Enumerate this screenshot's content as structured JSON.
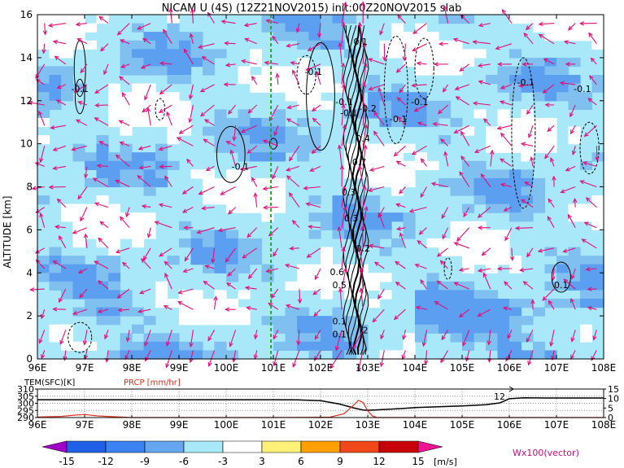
{
  "title": "NICAM U (4S) (12Z21NOV2015) init:00Z20NOV2015 slab",
  "colors": {
    "arrow": "#e0107a",
    "green_line": "#22aa22",
    "shade_light": "#a8e8f8",
    "shade_mid": "#80c0f0",
    "shade_dark": "#5c9ef0",
    "prcp": "#e03020"
  },
  "chart_data": [
    {
      "type": "heatmap",
      "name": "zonal wind cross-section",
      "xlabel": "",
      "ylabel": "ALTITUDE [km]",
      "xlim": [
        96,
        108
      ],
      "ylim": [
        0,
        16
      ],
      "x_ticks": [
        "96E",
        "97E",
        "98E",
        "99E",
        "100E",
        "101E",
        "102E",
        "103E",
        "104E",
        "105E",
        "106E",
        "107E",
        "108E"
      ],
      "y_ticks": [
        "0",
        "2",
        "4",
        "6",
        "8",
        "10",
        "12",
        "14",
        "16"
      ],
      "marker_line_lon": 100.95,
      "contour_labels": [
        {
          "text": "-0.1",
          "x": 96.9,
          "y": 12.4
        },
        {
          "text": "-0.1",
          "x": 100.3,
          "y": 8.8
        },
        {
          "text": "-0.1",
          "x": 101.85,
          "y": 13.2
        },
        {
          "text": "-0.1",
          "x": 102.5,
          "y": 11.8
        },
        {
          "text": "-0.1",
          "x": 102.6,
          "y": 11.3
        },
        {
          "text": "-0.2",
          "x": 103.0,
          "y": 11.5
        },
        {
          "text": "-0.1",
          "x": 103.65,
          "y": 11.0
        },
        {
          "text": "-0.1",
          "x": 104.1,
          "y": 11.8
        },
        {
          "text": "-0.1",
          "x": 106.35,
          "y": 12.7
        },
        {
          "text": "-0.1",
          "x": 107.55,
          "y": 12.4
        },
        {
          "text": "0.1",
          "x": 102.85,
          "y": 14.6
        },
        {
          "text": "0.4",
          "x": 102.9,
          "y": 10.1
        },
        {
          "text": "0.7",
          "x": 102.82,
          "y": 9.0
        },
        {
          "text": "0.3",
          "x": 102.6,
          "y": 7.6
        },
        {
          "text": "0.3",
          "x": 102.65,
          "y": 6.4
        },
        {
          "text": "0.2",
          "x": 102.9,
          "y": 5.0
        },
        {
          "text": "0.6",
          "x": 102.35,
          "y": 3.9
        },
        {
          "text": "0.5",
          "x": 102.4,
          "y": 3.3
        },
        {
          "text": "0.1",
          "x": 102.4,
          "y": 1.6
        },
        {
          "text": "0.1",
          "x": 102.4,
          "y": 1.0
        },
        {
          "text": "2",
          "x": 102.95,
          "y": 1.2
        },
        {
          "text": "0.1",
          "x": 107.1,
          "y": 3.3
        }
      ]
    },
    {
      "type": "line",
      "name": "surface panel",
      "left_axis_label": "TEM(SFC)[K]",
      "right_series_label": "PRCP [mm/hr]",
      "left_ticks": [
        "310",
        "305",
        "300",
        "295",
        "290"
      ],
      "right_ticks": [
        "15",
        "10",
        "5",
        "0"
      ],
      "x_ticks": [
        "96E",
        "97E",
        "98E",
        "99E",
        "100E",
        "101E",
        "102E",
        "103E",
        "104E",
        "105E",
        "106E",
        "107E",
        "108E"
      ],
      "xlim": [
        96,
        108
      ],
      "ylim_left": [
        290,
        310
      ],
      "ylim_right": [
        0,
        15
      ],
      "series": [
        {
          "name": "TEM(SFC)[K]",
          "x": [
            96,
            97,
            98,
            99,
            100,
            101,
            101.5,
            102.0,
            102.4,
            102.7,
            102.9,
            103.0,
            103.3,
            103.7,
            104.0,
            104.5,
            105.0,
            105.5,
            105.8,
            106.0,
            106.3,
            106.8,
            107.5,
            108
          ],
          "y": [
            302.5,
            302.5,
            302.5,
            302.5,
            302.5,
            302.5,
            302.4,
            301.8,
            299.5,
            296.8,
            295.3,
            295.1,
            295.6,
            296.3,
            297.0,
            297.6,
            298.2,
            299.0,
            300.3,
            303.2,
            303.8,
            303.7,
            303.7,
            303.7
          ]
        },
        {
          "name": "PRCP [mm/hr]",
          "x": [
            96,
            96.5,
            96.8,
            97.0,
            97.3,
            98,
            101,
            102.2,
            102.5,
            102.7,
            102.8,
            102.9,
            103.0,
            103.1,
            103.2,
            104,
            108
          ],
          "y": [
            0.3,
            0.6,
            1.3,
            1.6,
            0.8,
            0,
            0,
            0.2,
            2.0,
            6.5,
            9.0,
            8.0,
            3.5,
            0.8,
            0,
            0,
            0
          ]
        }
      ],
      "annotation": "12"
    }
  ],
  "colorbar": {
    "labels": [
      "-15",
      "-12",
      "-9",
      "-6",
      "-3",
      "3",
      "6",
      "9",
      "12",
      "15"
    ],
    "colors": [
      "#a000c8",
      "#2060e8",
      "#3c82f0",
      "#64a6f0",
      "#a8e8f8",
      "#ffffff",
      "#fff078",
      "#ffa000",
      "#f04818",
      "#c80008",
      "#f01494"
    ],
    "unit": "[m/s]",
    "vector_label": "Wx100(vector)"
  }
}
